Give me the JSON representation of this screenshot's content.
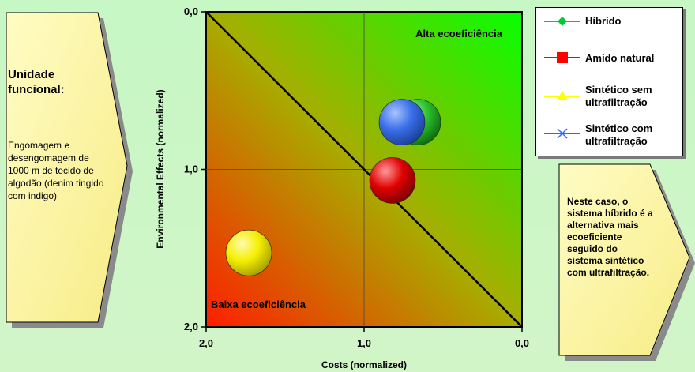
{
  "left_panel": {
    "title": "Unidade funcional:",
    "body": "Engomagem e desengomagem de 1000 m de tecido de algodão (denim tingido com indigo)"
  },
  "right_panel": {
    "body": "Neste caso, o sistema híbrido é a alternativa mais ecoeficiente seguido do sistema sintético com ultrafiltração."
  },
  "chart_data": {
    "type": "scatter",
    "xlabel": "Costs (normalized)",
    "ylabel": "Environmental Effects (normalized)",
    "x_ticks": [
      "2,0",
      "1,0",
      "0,0"
    ],
    "y_ticks": [
      "0,0",
      "1,0",
      "2,0"
    ],
    "xlim": [
      2.0,
      0.0
    ],
    "ylim": [
      0.0,
      2.0
    ],
    "grid": true,
    "annotations": {
      "high": "Alta ecoeficiência",
      "low": "Baixa ecoeficiência"
    },
    "series": [
      {
        "name": "Híbrido",
        "color": "#2ec02e",
        "x": 0.66,
        "y": 0.7
      },
      {
        "name": "Amido natural",
        "color": "#e00000",
        "x": 0.82,
        "y": 1.07
      },
      {
        "name": "Sintético sem ultrafiltração",
        "color": "#f5ef00",
        "x": 1.73,
        "y": 1.53
      },
      {
        "name": "Sintético com ultrafiltração",
        "color": "#3a6ee8",
        "x": 0.76,
        "y": 0.7
      }
    ],
    "legend": {
      "placement": "top-right",
      "items": [
        {
          "label": "Híbrido",
          "color": "#00cc33",
          "marker": "diamond-icon"
        },
        {
          "label": "Amido natural",
          "color": "#ff0000",
          "marker": "square-icon"
        },
        {
          "label": "Sintético sem ultrafiltração",
          "color": "#ffff00",
          "marker": "triangle-icon"
        },
        {
          "label": "Sintético com ultrafiltração",
          "color": "#3366ff",
          "marker": "x-icon"
        }
      ]
    }
  }
}
